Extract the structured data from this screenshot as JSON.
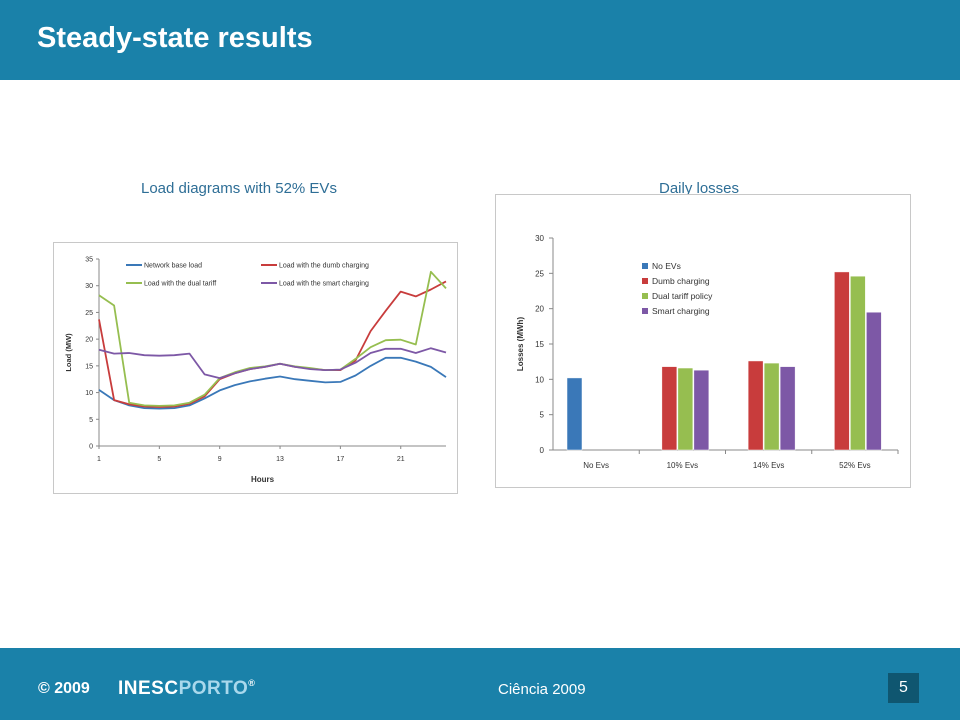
{
  "slide": {
    "title": "Steady-state results"
  },
  "footer": {
    "copyright": "© 2009",
    "logo_left": "INESC",
    "logo_right": "PORTO",
    "logo_reg": "®",
    "center_text": "Ciência 2009",
    "page_number": "5"
  },
  "colors": {
    "header_bar": "#1a81a9",
    "title_text": "#2e6e96",
    "blue": "#3a78b8",
    "red": "#c83c3c",
    "green": "#96be50",
    "purple": "#7d58a6"
  },
  "chart_data": [
    {
      "type": "line",
      "title": "Load diagrams with 52% EVs",
      "xlabel": "Hours",
      "ylabel": "Load (MW)",
      "xlim": [
        1,
        24
      ],
      "ylim": [
        0,
        35
      ],
      "xticks": [
        1,
        5,
        9,
        13,
        17,
        21
      ],
      "yticks": [
        0,
        5,
        10,
        15,
        20,
        25,
        30,
        35
      ],
      "grid": false,
      "legend_position": "top",
      "x": [
        1,
        2,
        3,
        4,
        5,
        6,
        7,
        8,
        9,
        10,
        11,
        12,
        13,
        14,
        15,
        16,
        17,
        18,
        19,
        20,
        21,
        22,
        23,
        24
      ],
      "series": [
        {
          "name": "Network base load",
          "color": "#3a78b8",
          "values": [
            10.5,
            8.6,
            7.6,
            7.1,
            7.0,
            7.1,
            7.6,
            8.9,
            10.4,
            11.4,
            12.1,
            12.6,
            13.0,
            12.5,
            12.2,
            11.9,
            12.0,
            13.2,
            15.0,
            16.5,
            16.5,
            15.8,
            14.8,
            12.9
          ]
        },
        {
          "name": "Load with the dumb charging",
          "color": "#c83c3c",
          "values": [
            23.7,
            8.6,
            7.8,
            7.4,
            7.3,
            7.4,
            7.9,
            9.3,
            12.5,
            13.6,
            14.4,
            14.8,
            15.4,
            14.8,
            14.5,
            14.2,
            14.2,
            16.0,
            21.5,
            25.3,
            28.9,
            28.0,
            29.3,
            30.8
          ]
        },
        {
          "name": "Load with the dual tariff",
          "color": "#96be50",
          "values": [
            28.2,
            26.3,
            8.1,
            7.6,
            7.5,
            7.6,
            8.1,
            9.6,
            12.7,
            13.8,
            14.6,
            14.9,
            15.4,
            14.9,
            14.6,
            14.2,
            14.3,
            16.3,
            18.5,
            19.8,
            19.9,
            19.0,
            32.6,
            29.5
          ]
        },
        {
          "name": "Load with the smart charging",
          "color": "#7d58a6",
          "values": [
            18.0,
            17.3,
            17.4,
            17.0,
            16.9,
            17.0,
            17.3,
            13.4,
            12.7,
            13.6,
            14.4,
            14.8,
            15.4,
            14.8,
            14.4,
            14.2,
            14.3,
            15.6,
            17.4,
            18.2,
            18.2,
            17.4,
            18.3,
            17.5
          ]
        }
      ]
    },
    {
      "type": "bar",
      "title": "Daily losses",
      "xlabel": "",
      "ylabel": "Losses (MWh)",
      "ylim": [
        0,
        30
      ],
      "yticks": [
        0,
        5,
        10,
        15,
        20,
        25,
        30
      ],
      "grid": false,
      "legend_position": "top-left",
      "categories": [
        "No Evs",
        "10% Evs",
        "14% Evs",
        "52% Evs"
      ],
      "series": [
        {
          "name": "No EVs",
          "color": "#3a78b8",
          "values": [
            10.2,
            null,
            null,
            null
          ]
        },
        {
          "name": "Dumb charging",
          "color": "#c83c3c",
          "values": [
            null,
            11.8,
            12.6,
            25.2
          ]
        },
        {
          "name": "Dual tariff policy",
          "color": "#96be50",
          "values": [
            null,
            11.6,
            12.3,
            24.6
          ]
        },
        {
          "name": "Smart charging",
          "color": "#7d58a6",
          "values": [
            null,
            11.3,
            11.8,
            19.5
          ]
        }
      ]
    }
  ]
}
